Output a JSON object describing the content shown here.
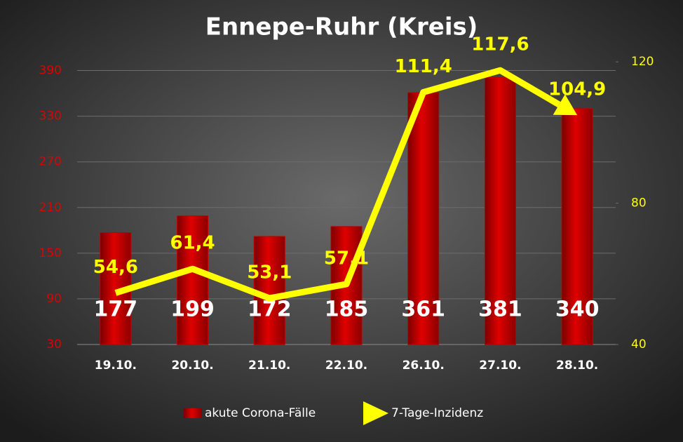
{
  "chart_data": {
    "type": "bar",
    "title": "Ennepe-Ruhr (Kreis)",
    "categories": [
      "19.10.",
      "20.10.",
      "21.10.",
      "22.10.",
      "26.10.",
      "27.10.",
      "28.10."
    ],
    "series": [
      {
        "name": "akute Corona-Fälle",
        "type": "bar",
        "color": "#c00000",
        "values": [
          177,
          199,
          172,
          185,
          361,
          381,
          340
        ]
      },
      {
        "name": "7-Tage-Inzidenz",
        "type": "line",
        "axis": "y2",
        "color": "#ffff00",
        "values": [
          54.6,
          61.4,
          53.1,
          57.1,
          111.4,
          117.6,
          104.9
        ],
        "value_labels": [
          "54,6",
          "61,4",
          "53,1",
          "57,1",
          "111,4",
          "117,6",
          "104,9"
        ]
      }
    ],
    "ylim": [
      30,
      420
    ],
    "yticks": [
      30,
      90,
      150,
      210,
      270,
      330,
      390
    ],
    "y2lim": [
      40,
      124
    ],
    "y2ticks": [
      40,
      80,
      120
    ],
    "grid": true
  }
}
